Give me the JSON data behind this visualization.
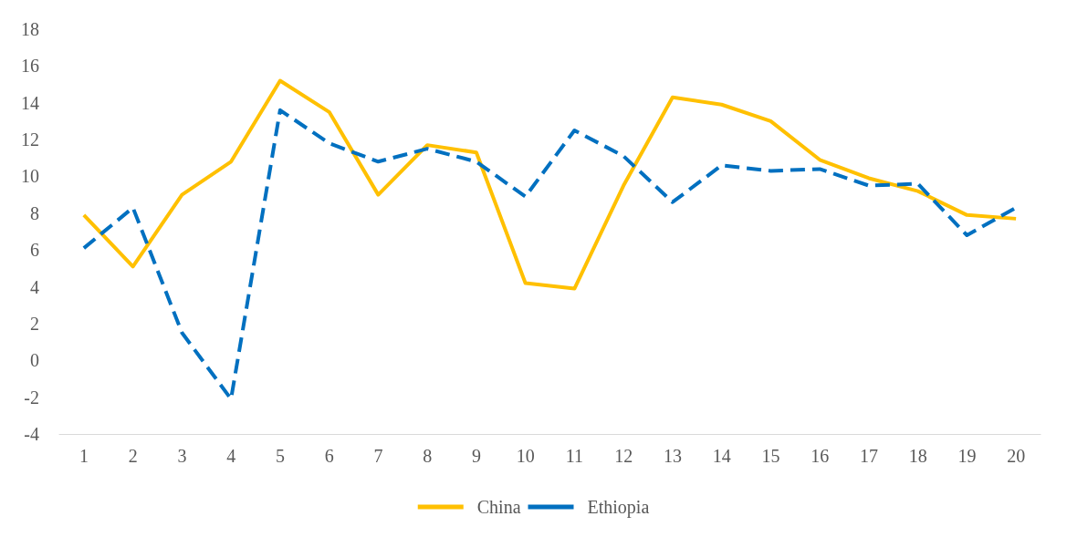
{
  "chart_data": {
    "type": "line",
    "categories": [
      "1",
      "2",
      "3",
      "4",
      "5",
      "6",
      "7",
      "8",
      "9",
      "10",
      "11",
      "12",
      "13",
      "14",
      "15",
      "16",
      "17",
      "18",
      "19",
      "20"
    ],
    "series": [
      {
        "name": "China",
        "color": "#ffc000",
        "line_style": "solid",
        "values": [
          7.9,
          5.1,
          9.0,
          10.8,
          15.2,
          13.5,
          9.0,
          11.7,
          11.3,
          4.2,
          3.9,
          9.5,
          14.3,
          13.9,
          13.0,
          10.9,
          9.9,
          9.2,
          7.9,
          7.7
        ]
      },
      {
        "name": "Ethiopia",
        "color": "#0070c0",
        "line_style": "dashed",
        "values": [
          6.1,
          8.3,
          1.5,
          -2.1,
          13.6,
          11.8,
          10.8,
          11.5,
          10.8,
          8.9,
          12.5,
          11.1,
          8.6,
          10.6,
          10.3,
          10.4,
          9.5,
          9.6,
          6.8,
          8.3
        ]
      }
    ],
    "ylim": [
      -4,
      18
    ],
    "yticks": [
      -4,
      -2,
      0,
      2,
      4,
      6,
      8,
      10,
      12,
      14,
      16,
      18
    ],
    "grid": false,
    "legend": "bottom",
    "marker": "none"
  }
}
